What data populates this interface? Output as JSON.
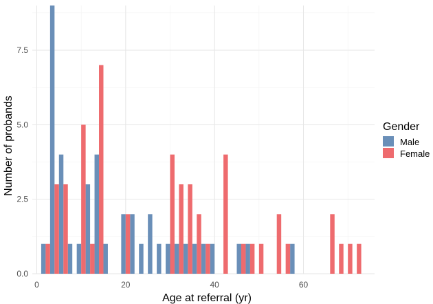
{
  "chart_data": {
    "type": "bar",
    "title": "",
    "xlabel": "Age at referral (yr)",
    "ylabel": "Number of probands",
    "xlim": [
      -1,
      76
    ],
    "ylim": [
      0,
      9
    ],
    "x_ticks": [
      0,
      20,
      40,
      60
    ],
    "y_ticks": [
      0,
      2.5,
      5,
      7.5
    ],
    "x_tick_labels": [
      "0",
      "20",
      "40",
      "60"
    ],
    "y_tick_labels": [
      "0.0",
      "2.5",
      "5.0",
      "7.5"
    ],
    "grid": true,
    "bin_width": 2,
    "legend": {
      "title": "Gender",
      "position": "right"
    },
    "series": [
      {
        "name": "Male",
        "color": "#6a8fb8",
        "points": [
          {
            "x": 2,
            "y": 1
          },
          {
            "x": 4,
            "y": 9
          },
          {
            "x": 6,
            "y": 4
          },
          {
            "x": 8,
            "y": 1
          },
          {
            "x": 10,
            "y": 1
          },
          {
            "x": 12,
            "y": 3
          },
          {
            "x": 14,
            "y": 4
          },
          {
            "x": 16,
            "y": 1
          },
          {
            "x": 20,
            "y": 2
          },
          {
            "x": 22,
            "y": 2
          },
          {
            "x": 24,
            "y": 1
          },
          {
            "x": 26,
            "y": 2
          },
          {
            "x": 28,
            "y": 1
          },
          {
            "x": 30,
            "y": 1
          },
          {
            "x": 32,
            "y": 1
          },
          {
            "x": 34,
            "y": 1
          },
          {
            "x": 36,
            "y": 1
          },
          {
            "x": 38,
            "y": 1
          },
          {
            "x": 40,
            "y": 1
          },
          {
            "x": 46,
            "y": 1
          },
          {
            "x": 48,
            "y": 1
          },
          {
            "x": 58,
            "y": 1
          }
        ]
      },
      {
        "name": "Female",
        "color": "#ee6b6e",
        "points": [
          {
            "x": 2,
            "y": 1
          },
          {
            "x": 4,
            "y": 3
          },
          {
            "x": 6,
            "y": 3
          },
          {
            "x": 10,
            "y": 5
          },
          {
            "x": 12,
            "y": 1
          },
          {
            "x": 14,
            "y": 7
          },
          {
            "x": 20,
            "y": 2
          },
          {
            "x": 30,
            "y": 4
          },
          {
            "x": 32,
            "y": 3
          },
          {
            "x": 34,
            "y": 3
          },
          {
            "x": 36,
            "y": 2
          },
          {
            "x": 38,
            "y": 1
          },
          {
            "x": 42,
            "y": 4
          },
          {
            "x": 46,
            "y": 1
          },
          {
            "x": 48,
            "y": 1
          },
          {
            "x": 50,
            "y": 1
          },
          {
            "x": 54,
            "y": 2
          },
          {
            "x": 56,
            "y": 1
          },
          {
            "x": 66,
            "y": 2
          },
          {
            "x": 68,
            "y": 1
          },
          {
            "x": 70,
            "y": 1
          },
          {
            "x": 72,
            "y": 1
          }
        ]
      }
    ]
  }
}
